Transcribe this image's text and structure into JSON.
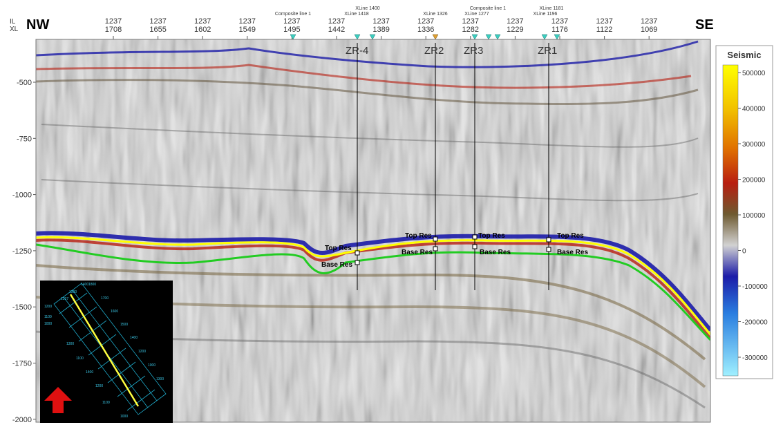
{
  "axis_headers": {
    "il": "IL",
    "xl": "XL"
  },
  "direction": {
    "left": "NW",
    "right": "SE"
  },
  "top_ticks": [
    {
      "il": "1237",
      "xl": "1708"
    },
    {
      "il": "1237",
      "xl": "1655"
    },
    {
      "il": "1237",
      "xl": "1602"
    },
    {
      "il": "1237",
      "xl": "1549"
    },
    {
      "il": "1237",
      "xl": "1495"
    },
    {
      "il": "1237",
      "xl": "1442"
    },
    {
      "il": "1237",
      "xl": "1389"
    },
    {
      "il": "1237",
      "xl": "1336"
    },
    {
      "il": "1237",
      "xl": "1282"
    },
    {
      "il": "1237",
      "xl": "1229"
    },
    {
      "il": "1237",
      "xl": "1176"
    },
    {
      "il": "1237",
      "xl": "1122"
    },
    {
      "il": "1237",
      "xl": "1069"
    }
  ],
  "line_tags": [
    "Composite line 1",
    "XLine 1400",
    "XLine 1418",
    "XLine 1326",
    "Composite line 1",
    "XLine 1277",
    "XLine 1181",
    "XLine 1196"
  ],
  "wells": [
    "ZR-4",
    "ZR2",
    "ZR3",
    "ZR1"
  ],
  "horizon_labels": {
    "top": "Top Res",
    "base": "Base Res"
  },
  "depth_ticks": [
    "-500",
    "-750",
    "-1000",
    "-1250",
    "-1500",
    "-1750",
    "-2000"
  ],
  "colorbar": {
    "title": "Seismic",
    "ticks": [
      "500000",
      "400000",
      "300000",
      "200000",
      "100000",
      "0",
      "-100000",
      "-200000",
      "-300000"
    ],
    "colors": [
      "#ffff00",
      "#f0b000",
      "#d85000",
      "#b01c10",
      "#7a5a2a",
      "#cfcfcf",
      "#1a1aa0",
      "#2a7ee0",
      "#8ee8f8"
    ]
  },
  "inset_map": {
    "labels": [
      "1400",
      "1800",
      "1300",
      "1700",
      "1200",
      "1600",
      "1100",
      "1500",
      "1000",
      "1400",
      "1300",
      "1200",
      "1100",
      "1000",
      "1400",
      "1300",
      "1200",
      "1100",
      "1000",
      "1237"
    ],
    "arrow": "north-arrow"
  },
  "colors": {
    "top_horizon": "#ffff00",
    "base_horizon": "#22cc22",
    "well_line": "#000000"
  }
}
